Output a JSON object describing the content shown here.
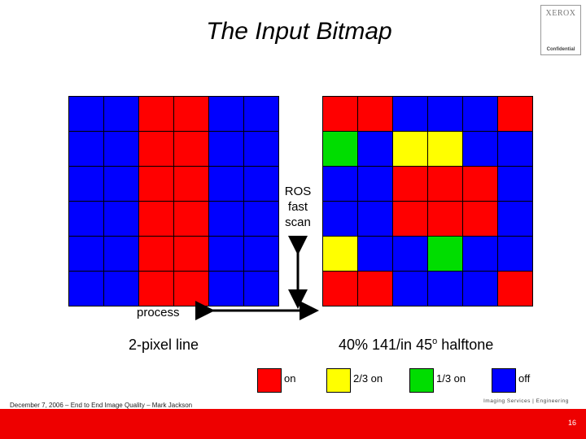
{
  "slide": {
    "title": "The Input Bitmap",
    "logo": {
      "brand": "XEROX",
      "note": "Confidential"
    },
    "ros_label": [
      "ROS",
      "fast",
      "scan"
    ],
    "process_label": "process",
    "left_heading": "2-pixel line",
    "right_heading_main": "40% 141/in 45",
    "right_heading_sup": "o",
    "right_heading_tail": " halftone",
    "grids": {
      "left": [
        [
          "b",
          "b",
          "r",
          "r",
          "b",
          "b"
        ],
        [
          "b",
          "b",
          "r",
          "r",
          "b",
          "b"
        ],
        [
          "b",
          "b",
          "r",
          "r",
          "b",
          "b"
        ],
        [
          "b",
          "b",
          "r",
          "r",
          "b",
          "b"
        ],
        [
          "b",
          "b",
          "r",
          "r",
          "b",
          "b"
        ],
        [
          "b",
          "b",
          "r",
          "r",
          "b",
          "b"
        ]
      ],
      "right": [
        [
          "r",
          "r",
          "b",
          "b",
          "b",
          "r"
        ],
        [
          "g",
          "b",
          "y",
          "y",
          "b",
          "b"
        ],
        [
          "b",
          "b",
          "r",
          "r",
          "r",
          "b"
        ],
        [
          "b",
          "b",
          "r",
          "r",
          "r",
          "b"
        ],
        [
          "y",
          "b",
          "b",
          "g",
          "b",
          "b"
        ],
        [
          "r",
          "r",
          "b",
          "b",
          "b",
          "r"
        ]
      ]
    },
    "colors": {
      "r": "#ff0000",
      "b": "#0000ff",
      "y": "#ffff00",
      "g": "#00dd00"
    },
    "legend": [
      {
        "key": "r",
        "label": "on"
      },
      {
        "key": "y",
        "label": "2/3 on"
      },
      {
        "key": "g",
        "label": "1/3 on"
      },
      {
        "key": "b",
        "label": "off"
      }
    ],
    "footer": "December 7, 2006 – End to End Image Quality – Mark Jackson",
    "footer_brand": "Imaging Services | Engineering",
    "page_number": "16"
  }
}
